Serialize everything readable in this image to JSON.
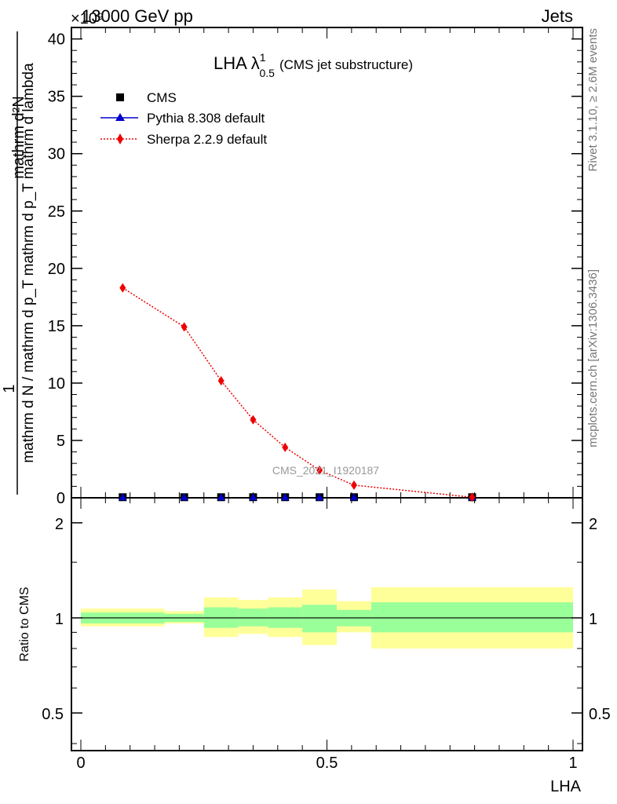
{
  "header": {
    "left": "13000 GeV pp",
    "right": "Jets",
    "exponent": "×10⁹"
  },
  "side_labels": {
    "rivet": "Rivet 3.1.10, ≥ 2.6M events",
    "mcplots": "mcplots.cern.ch [arXiv:1306.3436]"
  },
  "watermark": "CMS_2021_I1920187",
  "chart_data": [
    {
      "type": "scatter",
      "panel": "main",
      "title": "LHA λ",
      "title_sup": "1",
      "title_sub": "0.5",
      "title_suffix": "(CMS jet substructure)",
      "ylabel_numerator": "1",
      "ylabel_denominator": "mathrm d N / mathrm d p_T mathrm d p_T mathrm d lambda",
      "ylabel_top": "mathrm d²N",
      "ylim": [
        0,
        41
      ],
      "yticks": [
        0,
        5,
        10,
        15,
        20,
        25,
        30,
        35,
        40
      ],
      "xlim": [
        -0.02,
        1.02
      ],
      "legend_position": "top-left",
      "series": [
        {
          "name": "CMS",
          "marker": "square",
          "color": "#000000",
          "x": [
            0.085,
            0.21,
            0.285,
            0.35,
            0.415,
            0.485,
            0.555,
            0.795
          ],
          "y": [
            0.05,
            0.05,
            0.05,
            0.05,
            0.05,
            0.05,
            0.05,
            0.05
          ]
        },
        {
          "name": "Pythia 8.308 default",
          "marker": "triangle",
          "color": "#0000cc",
          "x": [
            0.085,
            0.21,
            0.285,
            0.35,
            0.415,
            0.485,
            0.555,
            0.795
          ],
          "y": [
            0.05,
            0.05,
            0.05,
            0.05,
            0.05,
            0.05,
            0.05,
            0.05
          ]
        },
        {
          "name": "Sherpa 2.2.9 default",
          "marker": "diamond",
          "color": "#ee0000",
          "x": [
            0.085,
            0.21,
            0.285,
            0.35,
            0.415,
            0.485,
            0.555,
            0.795
          ],
          "y": [
            18.3,
            14.9,
            10.2,
            6.8,
            4.4,
            2.4,
            1.1,
            0.05
          ]
        }
      ]
    },
    {
      "type": "area",
      "panel": "ratio",
      "ylabel": "Ratio to CMS",
      "xlabel": "LHA",
      "ylog": true,
      "ylim": [
        0.38,
        2.4
      ],
      "yticks": [
        0.5,
        1,
        2
      ],
      "ytick_labels": [
        "0.5",
        "1",
        "2"
      ],
      "xticks": [
        0,
        0.5,
        1
      ],
      "xtick_labels": [
        "0",
        "0.5",
        "1"
      ],
      "reference": 1,
      "bins": [
        {
          "x0": 0.0,
          "x1": 0.17,
          "inner": [
            0.96,
            1.04
          ],
          "outer": [
            0.94,
            1.07
          ]
        },
        {
          "x0": 0.17,
          "x1": 0.25,
          "inner": [
            0.97,
            1.03
          ],
          "outer": [
            0.96,
            1.05
          ]
        },
        {
          "x0": 0.25,
          "x1": 0.32,
          "inner": [
            0.93,
            1.08
          ],
          "outer": [
            0.87,
            1.16
          ]
        },
        {
          "x0": 0.32,
          "x1": 0.38,
          "inner": [
            0.94,
            1.07
          ],
          "outer": [
            0.89,
            1.14
          ]
        },
        {
          "x0": 0.38,
          "x1": 0.45,
          "inner": [
            0.93,
            1.08
          ],
          "outer": [
            0.87,
            1.16
          ]
        },
        {
          "x0": 0.45,
          "x1": 0.52,
          "inner": [
            0.9,
            1.1
          ],
          "outer": [
            0.82,
            1.23
          ]
        },
        {
          "x0": 0.52,
          "x1": 0.59,
          "inner": [
            0.94,
            1.06
          ],
          "outer": [
            0.9,
            1.13
          ]
        },
        {
          "x0": 0.59,
          "x1": 1.0,
          "inner": [
            0.9,
            1.12
          ],
          "outer": [
            0.8,
            1.25
          ]
        }
      ],
      "inner_color": "#99ff99",
      "outer_color": "#ffff99"
    }
  ]
}
